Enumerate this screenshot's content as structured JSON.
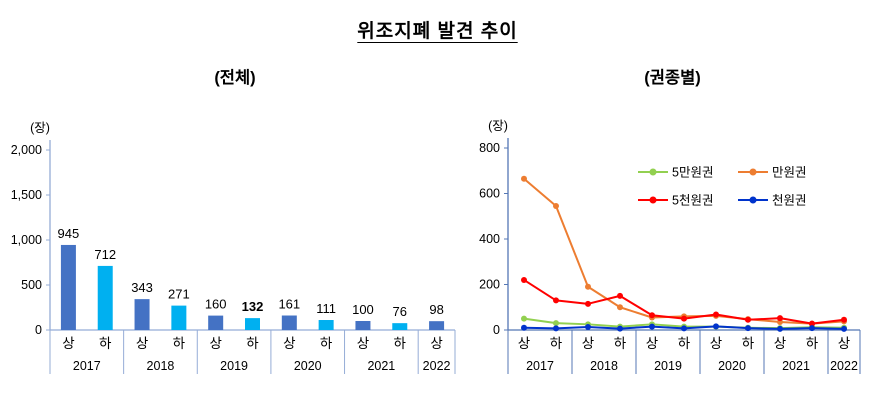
{
  "title": "위조지폐 발견 추이",
  "chart_data": [
    {
      "type": "bar",
      "title": "(전체)",
      "unit": "(장)",
      "xlabel": "",
      "ylabel": "장",
      "ylim": [
        0,
        2000
      ],
      "grid": false,
      "axis_color": "#95ACD6",
      "bar_colors": [
        "#4472C4",
        "#00B0F0"
      ],
      "yticks": [
        {
          "value": 0,
          "label": "0"
        },
        {
          "value": 500,
          "label": "500"
        },
        {
          "value": 1000,
          "label": "1,000"
        },
        {
          "value": 1500,
          "label": "1,500"
        },
        {
          "value": 2000,
          "label": "2,000"
        }
      ],
      "categories": [
        "상",
        "하",
        "상",
        "하",
        "상",
        "하",
        "상",
        "하",
        "상",
        "하",
        "상"
      ],
      "year_groups": [
        {
          "label": "2017",
          "count": 2
        },
        {
          "label": "2018",
          "count": 2
        },
        {
          "label": "2019",
          "count": 2
        },
        {
          "label": "2020",
          "count": 2
        },
        {
          "label": "2021",
          "count": 2
        },
        {
          "label": "2022",
          "count": 1
        }
      ],
      "values": [
        945,
        712,
        343,
        271,
        160,
        132,
        161,
        111,
        100,
        76,
        98
      ],
      "bold_value_index": 5
    },
    {
      "type": "line",
      "title": "(권종별)",
      "unit": "(장)",
      "xlabel": "",
      "ylabel": "장",
      "ylim": [
        0,
        800
      ],
      "grid": false,
      "legend_position": "inside-upper-right",
      "axis_color": "#5577B5",
      "yticks": [
        {
          "value": 0,
          "label": "0"
        },
        {
          "value": 200,
          "label": "200"
        },
        {
          "value": 400,
          "label": "400"
        },
        {
          "value": 600,
          "label": "600"
        },
        {
          "value": 800,
          "label": "800"
        }
      ],
      "categories": [
        "상",
        "하",
        "상",
        "하",
        "상",
        "하",
        "상",
        "하",
        "상",
        "하",
        "상"
      ],
      "year_groups": [
        {
          "label": "2017",
          "count": 2
        },
        {
          "label": "2018",
          "count": 2
        },
        {
          "label": "2019",
          "count": 2
        },
        {
          "label": "2020",
          "count": 2
        },
        {
          "label": "2021",
          "count": 2
        },
        {
          "label": "2022",
          "count": 1
        }
      ],
      "series": [
        {
          "name": "5만원권",
          "color": "#92D050",
          "values": [
            50,
            30,
            25,
            15,
            25,
            15,
            15,
            10,
            8,
            12,
            10
          ]
        },
        {
          "name": "만원권",
          "color": "#ED7D31",
          "values": [
            665,
            545,
            190,
            100,
            55,
            60,
            62,
            48,
            35,
            28,
            38
          ]
        },
        {
          "name": "5천원권",
          "color": "#FF0000",
          "values": [
            220,
            130,
            115,
            150,
            65,
            50,
            68,
            45,
            52,
            28,
            45
          ]
        },
        {
          "name": "천원권",
          "color": "#0033CC",
          "values": [
            10,
            7,
            13,
            6,
            15,
            7,
            16,
            8,
            5,
            8,
            5
          ]
        }
      ]
    }
  ]
}
